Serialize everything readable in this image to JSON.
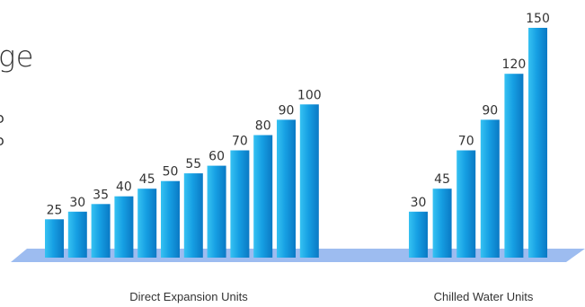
{
  "page_fragments": {
    "title_fragment": "ge",
    "small_1": "ↄ",
    "small_2": "ↄ"
  },
  "colors": {
    "bar_light": "#36c2f2",
    "bar_mid": "#169fe3",
    "bar_dark": "#0a79c4",
    "platform": "#9dbcf0",
    "platform_edge": "#7fa6e4"
  },
  "chart_data": {
    "type": "bar",
    "groups": [
      {
        "name": "Direct Expansion Units",
        "values": [
          25,
          30,
          35,
          40,
          45,
          50,
          55,
          60,
          70,
          80,
          90,
          100
        ]
      },
      {
        "name": "Chilled Water Units",
        "values": [
          30,
          45,
          70,
          90,
          120,
          150
        ]
      }
    ],
    "ylim": [
      0,
      150
    ],
    "grid": false,
    "data_labels": true
  }
}
